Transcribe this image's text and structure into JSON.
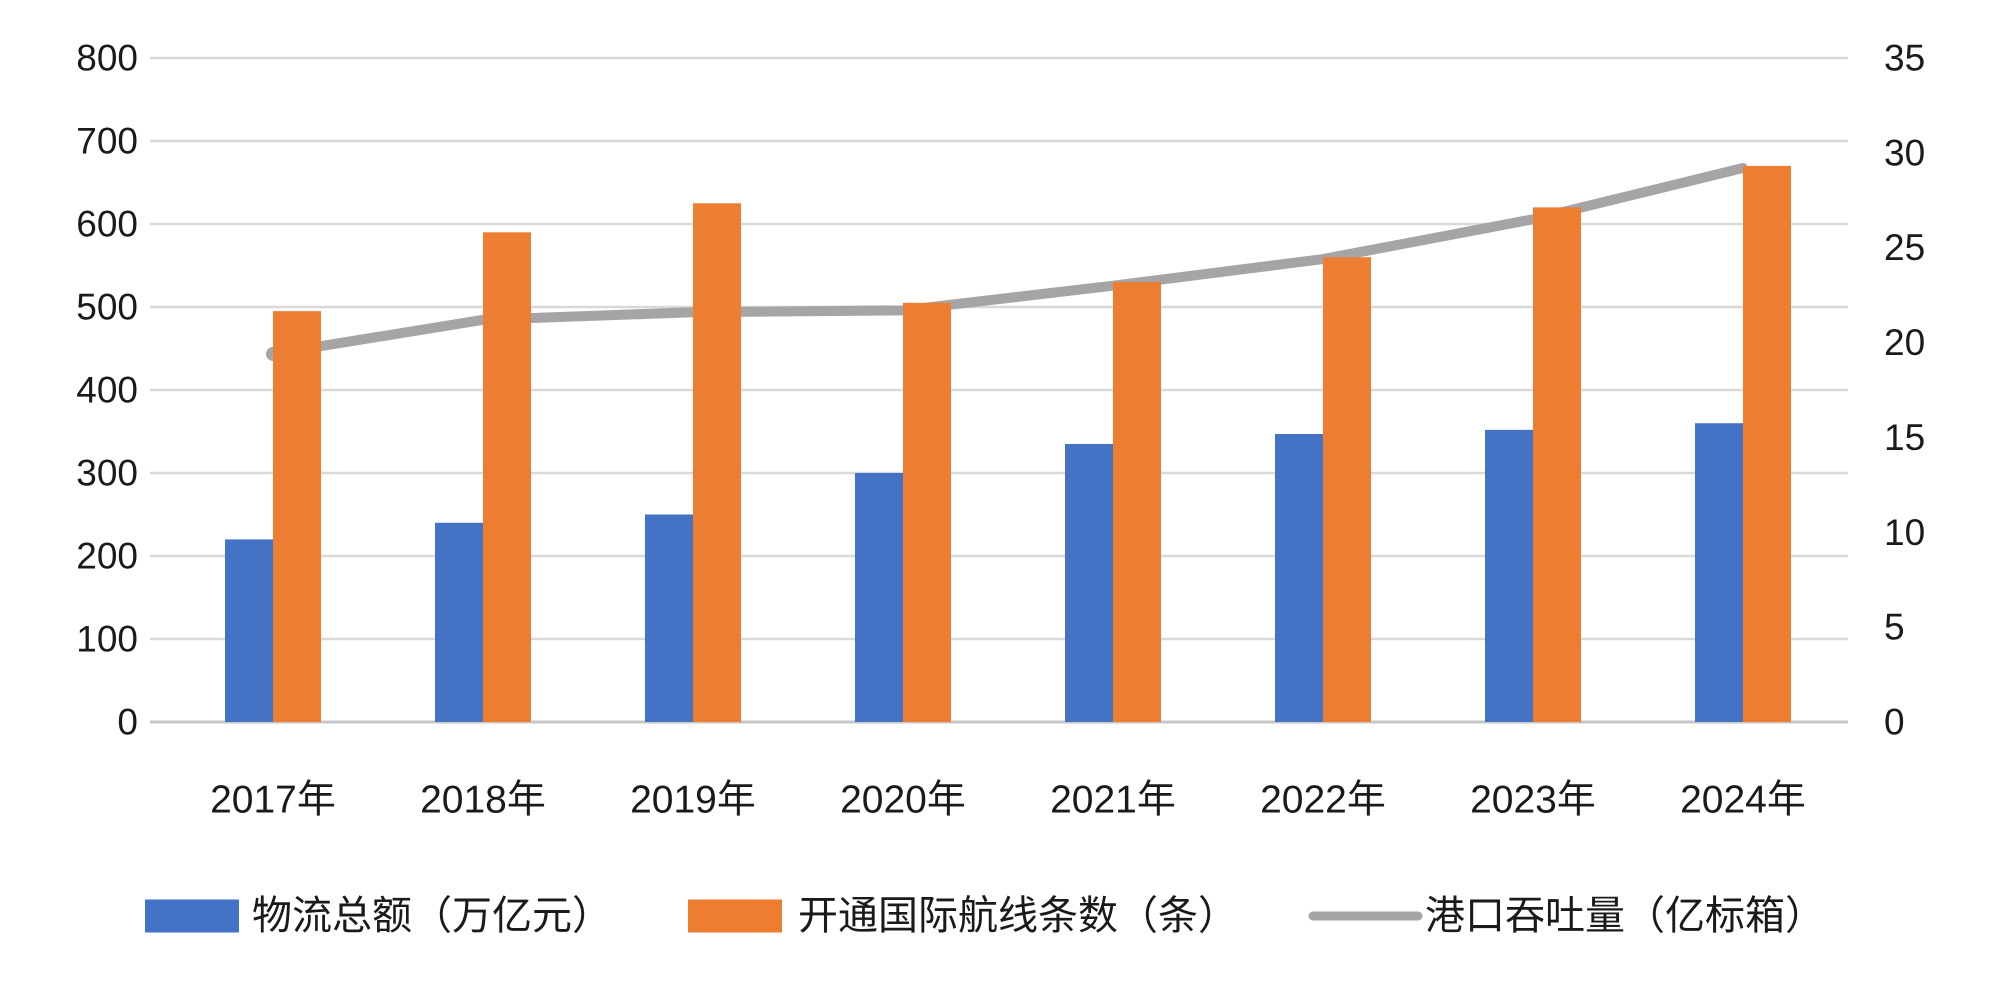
{
  "chart_data": {
    "type": "combo",
    "title": "",
    "categories": [
      "2017年",
      "2018年",
      "2019年",
      "2020年",
      "2021年",
      "2022年",
      "2023年",
      "2024年"
    ],
    "series": [
      {
        "key": "logistics-total",
        "name": "物流总额（万亿元）",
        "type": "bar",
        "axis": "left",
        "color": "#4472C4",
        "values": [
          220,
          240,
          250,
          300,
          335,
          347,
          352,
          360
        ]
      },
      {
        "key": "intl-air-routes",
        "name": "开通国际航线条数（条）",
        "type": "bar",
        "axis": "left",
        "color": "#ED7D31",
        "values": [
          495,
          590,
          625,
          505,
          530,
          560,
          620,
          670
        ]
      },
      {
        "key": "port-throughput",
        "name": "港口吞吐量（亿标箱）",
        "type": "line",
        "axis": "right",
        "color": "#A5A5A5",
        "values": [
          19.4,
          21.2,
          21.6,
          21.7,
          23.0,
          24.4,
          26.5,
          29.2
        ]
      }
    ],
    "left_axis": {
      "min": 0,
      "max": 800,
      "step": 100,
      "ticks": [
        "800",
        "700",
        "600",
        "500",
        "400",
        "300",
        "200",
        "100",
        "0"
      ]
    },
    "right_axis": {
      "min": 0,
      "max": 35,
      "step": 5,
      "ticks": [
        "35",
        "30",
        "25",
        "20",
        "15",
        "10",
        "5",
        "0"
      ]
    },
    "grid": true,
    "legend_position": "bottom"
  },
  "colors": {
    "background": "#ffffff",
    "gridline": "#D9D9D9",
    "axis_line": "#C6C6C6",
    "text": "#1a1a1a",
    "bar_blue": "#4472C4",
    "bar_orange": "#ED7D31",
    "line_gray": "#A5A5A5"
  }
}
